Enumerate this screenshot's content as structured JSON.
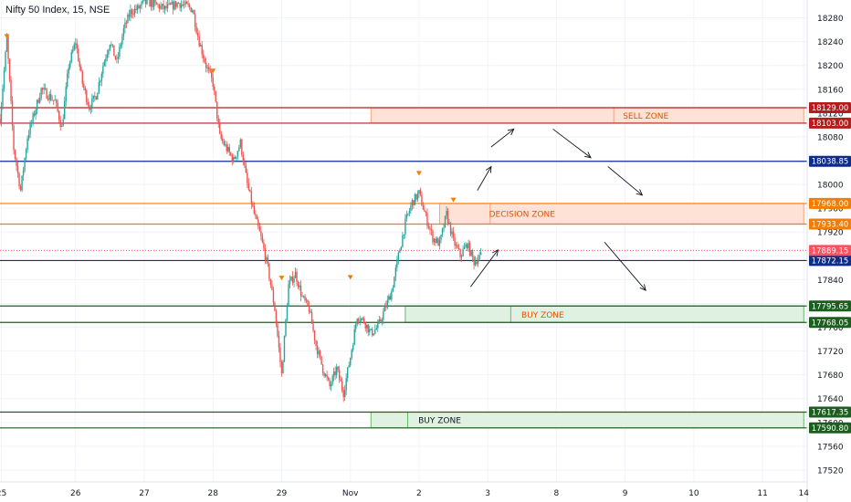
{
  "header": {
    "title": "Nifty 50 Index, 15, NSE"
  },
  "chart_data": {
    "type": "candlestick",
    "title": "Nifty 50 Index, 15, NSE",
    "ylim": [
      17500,
      18310
    ],
    "y_ticks": [
      17520,
      17560,
      17600,
      17640,
      17680,
      17720,
      17760,
      17800,
      17840,
      17880,
      17920,
      17960,
      18000,
      18040,
      18080,
      18120,
      18160,
      18200,
      18240,
      18280
    ],
    "x_ticks": [
      {
        "label": "25",
        "t": 0.2
      },
      {
        "label": "26",
        "t": 11
      },
      {
        "label": "27",
        "t": 21
      },
      {
        "label": "28",
        "t": 31
      },
      {
        "label": "29",
        "t": 41
      },
      {
        "label": "Nov",
        "t": 51
      },
      {
        "label": "2",
        "t": 61
      },
      {
        "label": "3",
        "t": 71
      },
      {
        "label": "8",
        "t": 81
      },
      {
        "label": "9",
        "t": 91
      },
      {
        "label": "10",
        "t": 101
      },
      {
        "label": "11",
        "t": 111
      },
      {
        "label": "14",
        "t": 117
      }
    ],
    "xlim": [
      0,
      117.5
    ],
    "last_price": 17889.15,
    "colors": {
      "up": "#26a69a",
      "down": "#ef5350",
      "grid": "#f0f3fa"
    },
    "levels": [
      {
        "value": 18129.0,
        "label": "18129.00",
        "color": "#b71c1c"
      },
      {
        "value": 18103.0,
        "label": "18103.00",
        "color": "#b71c1c"
      },
      {
        "value": 18038.85,
        "label": "18038.85",
        "color": "#0d2c8c"
      },
      {
        "value": 17968.0,
        "label": "17968.00",
        "color": "#f57c00"
      },
      {
        "value": 17933.4,
        "label": "17933.40",
        "color": "#f57c00"
      },
      {
        "value": 17872.15,
        "label": "17872.15",
        "color": "#0d2c8c"
      },
      {
        "value": 17795.65,
        "label": "17795.65",
        "color": "#1b5e20"
      },
      {
        "value": 17768.05,
        "label": "17768.05",
        "color": "#1b5e20"
      },
      {
        "value": 17617.35,
        "label": "17617.35",
        "color": "#1b5e20"
      },
      {
        "value": 17590.8,
        "label": "17590.80",
        "color": "#1b5e20"
      }
    ],
    "zones": [
      {
        "label": "SELL ZONE",
        "top": 18129,
        "bottom": 18103,
        "t0": 54,
        "t1": 117,
        "label_t": 94,
        "fill": "#fde2d5",
        "stroke": "#f4a582",
        "text": "#e65100"
      },
      {
        "label": "DECISION ZONE",
        "top": 17968,
        "bottom": 17933.4,
        "t0": 64,
        "t1": 117,
        "label_t": 76,
        "fill": "#fde2d5",
        "stroke": "#f4a582",
        "text": "#e65100"
      },
      {
        "label": "BUY ZONE",
        "top": 17795.65,
        "bottom": 17768.05,
        "t0": 59,
        "t1": 117,
        "label_t": 79,
        "fill": "#dff2e1",
        "stroke": "#66bb6a",
        "text": "#e65100"
      },
      {
        "label": "BUY ZONE",
        "top": 17617.35,
        "bottom": 17590.8,
        "t0": 54,
        "t1": 117,
        "label_t": 64,
        "fill": "#dff2e1",
        "stroke": "#66bb6a",
        "text": "#131722"
      }
    ],
    "arrows": [
      {
        "from": [
          68.5,
          17828
        ],
        "to": [
          72.5,
          17890
        ]
      },
      {
        "from": [
          69.5,
          17990
        ],
        "to": [
          71.5,
          18030
        ]
      },
      {
        "from": [
          71.5,
          18063
        ],
        "to": [
          74.8,
          18093
        ]
      },
      {
        "from": [
          80.5,
          18093
        ],
        "to": [
          86,
          18045
        ]
      },
      {
        "from": [
          88.5,
          18030
        ],
        "to": [
          93.5,
          17982
        ]
      },
      {
        "from": [
          88,
          17903
        ],
        "to": [
          94,
          17822
        ]
      }
    ],
    "markers": [
      {
        "t": 1,
        "value": 18248
      },
      {
        "t": 31,
        "value": 18190
      },
      {
        "t": 41,
        "value": 17842
      },
      {
        "t": 51,
        "value": 17843
      },
      {
        "t": 61,
        "value": 18018
      },
      {
        "t": 66,
        "value": 17973
      }
    ],
    "path": [
      [
        0,
        18110
      ],
      [
        1,
        18245
      ],
      [
        2,
        18060
      ],
      [
        3,
        17990
      ],
      [
        4,
        18080
      ],
      [
        5,
        18120
      ],
      [
        6,
        18160
      ],
      [
        7,
        18150
      ],
      [
        8,
        18140
      ],
      [
        9,
        18095
      ],
      [
        10,
        18200
      ],
      [
        11,
        18240
      ],
      [
        12,
        18170
      ],
      [
        13,
        18130
      ],
      [
        14,
        18150
      ],
      [
        15,
        18200
      ],
      [
        16,
        18240
      ],
      [
        17,
        18205
      ],
      [
        18,
        18260
      ],
      [
        19,
        18290
      ],
      [
        20,
        18295
      ],
      [
        21,
        18305
      ],
      [
        22,
        18305
      ],
      [
        23,
        18300
      ],
      [
        24,
        18295
      ],
      [
        25,
        18300
      ],
      [
        26,
        18305
      ],
      [
        27,
        18300
      ],
      [
        28,
        18295
      ],
      [
        29,
        18240
      ],
      [
        30,
        18200
      ],
      [
        31,
        18170
      ],
      [
        32,
        18080
      ],
      [
        33,
        18060
      ],
      [
        34,
        18040
      ],
      [
        35,
        18070
      ],
      [
        36,
        18000
      ],
      [
        37,
        17950
      ],
      [
        38,
        17910
      ],
      [
        39,
        17860
      ],
      [
        40,
        17790
      ],
      [
        41,
        17680
      ],
      [
        42,
        17830
      ],
      [
        43,
        17850
      ],
      [
        44,
        17810
      ],
      [
        45,
        17790
      ],
      [
        46,
        17730
      ],
      [
        47,
        17690
      ],
      [
        48,
        17660
      ],
      [
        49,
        17690
      ],
      [
        50,
        17650
      ],
      [
        51,
        17710
      ],
      [
        52,
        17780
      ],
      [
        53,
        17770
      ],
      [
        54,
        17750
      ],
      [
        55,
        17760
      ],
      [
        56,
        17790
      ],
      [
        57,
        17820
      ],
      [
        58,
        17880
      ],
      [
        59,
        17935
      ],
      [
        60,
        17970
      ],
      [
        61,
        17985
      ],
      [
        62,
        17945
      ],
      [
        63,
        17910
      ],
      [
        64,
        17900
      ],
      [
        65,
        17950
      ],
      [
        66,
        17905
      ],
      [
        67,
        17880
      ],
      [
        68,
        17900
      ],
      [
        69,
        17870
      ],
      [
        70,
        17880
      ]
    ]
  }
}
